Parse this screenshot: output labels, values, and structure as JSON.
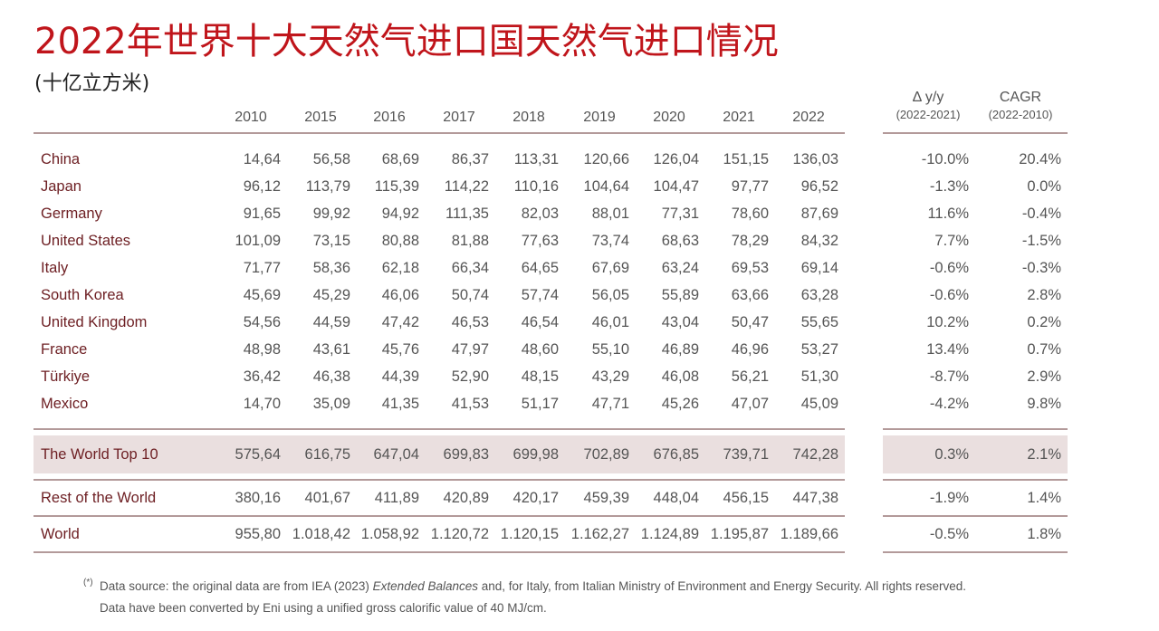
{
  "title": "2022年世界十大天然气进口国天然气进口情况",
  "subtitle": "(十亿立方米)",
  "years": [
    "2010",
    "2015",
    "2016",
    "2017",
    "2018",
    "2019",
    "2020",
    "2021",
    "2022"
  ],
  "delta_header": {
    "label": "Δ y/y",
    "sub": "(2022-2021)"
  },
  "cagr_header": {
    "label": "CAGR",
    "sub": "(2022-2010)"
  },
  "rows": [
    {
      "country": "China",
      "values": [
        "14,64",
        "56,58",
        "68,69",
        "86,37",
        "113,31",
        "120,66",
        "126,04",
        "151,15",
        "136,03"
      ],
      "delta": "-10.0%",
      "cagr": "20.4%"
    },
    {
      "country": "Japan",
      "values": [
        "96,12",
        "113,79",
        "115,39",
        "114,22",
        "110,16",
        "104,64",
        "104,47",
        "97,77",
        "96,52"
      ],
      "delta": "-1.3%",
      "cagr": "0.0%"
    },
    {
      "country": "Germany",
      "values": [
        "91,65",
        "99,92",
        "94,92",
        "111,35",
        "82,03",
        "88,01",
        "77,31",
        "78,60",
        "87,69"
      ],
      "delta": "11.6%",
      "cagr": "-0.4%"
    },
    {
      "country": "United States",
      "values": [
        "101,09",
        "73,15",
        "80,88",
        "81,88",
        "77,63",
        "73,74",
        "68,63",
        "78,29",
        "84,32"
      ],
      "delta": "7.7%",
      "cagr": "-1.5%"
    },
    {
      "country": "Italy",
      "values": [
        "71,77",
        "58,36",
        "62,18",
        "66,34",
        "64,65",
        "67,69",
        "63,24",
        "69,53",
        "69,14"
      ],
      "delta": "-0.6%",
      "cagr": "-0.3%"
    },
    {
      "country": "South Korea",
      "values": [
        "45,69",
        "45,29",
        "46,06",
        "50,74",
        "57,74",
        "56,05",
        "55,89",
        "63,66",
        "63,28"
      ],
      "delta": "-0.6%",
      "cagr": "2.8%"
    },
    {
      "country": "United Kingdom",
      "values": [
        "54,56",
        "44,59",
        "47,42",
        "46,53",
        "46,54",
        "46,01",
        "43,04",
        "50,47",
        "55,65"
      ],
      "delta": "10.2%",
      "cagr": "0.2%"
    },
    {
      "country": "France",
      "values": [
        "48,98",
        "43,61",
        "45,76",
        "47,97",
        "48,60",
        "55,10",
        "46,89",
        "46,96",
        "53,27"
      ],
      "delta": "13.4%",
      "cagr": "0.7%"
    },
    {
      "country": "Türkiye",
      "values": [
        "36,42",
        "46,38",
        "44,39",
        "52,90",
        "48,15",
        "43,29",
        "46,08",
        "56,21",
        "51,30"
      ],
      "delta": "-8.7%",
      "cagr": "2.9%"
    },
    {
      "country": "Mexico",
      "values": [
        "14,70",
        "35,09",
        "41,35",
        "41,53",
        "51,17",
        "47,71",
        "45,26",
        "47,07",
        "45,09"
      ],
      "delta": "-4.2%",
      "cagr": "9.8%"
    }
  ],
  "top10": {
    "country": "The World Top 10",
    "values": [
      "575,64",
      "616,75",
      "647,04",
      "699,83",
      "699,98",
      "702,89",
      "676,85",
      "739,71",
      "742,28"
    ],
    "delta": "0.3%",
    "cagr": "2.1%"
  },
  "rest": {
    "country": "Rest of the World",
    "values": [
      "380,16",
      "401,67",
      "411,89",
      "420,89",
      "420,17",
      "459,39",
      "448,04",
      "456,15",
      "447,38"
    ],
    "delta": "-1.9%",
    "cagr": "1.4%"
  },
  "world": {
    "country": "World",
    "values": [
      "955,80",
      "1.018,42",
      "1.058,92",
      "1.120,72",
      "1.120,15",
      "1.162,27",
      "1.124,89",
      "1.195,87",
      "1.189,66"
    ],
    "delta": "-0.5%",
    "cagr": "1.8%"
  },
  "footnote": {
    "mark": "(*)",
    "line1_pre": "Data source: the original data are from IEA (2023) ",
    "line1_em": "Extended Balances",
    "line1_post": " and, for Italy, from Italian Ministry of Environment and Energy Security. All rights reserved.",
    "line2": "Data have been converted by Eni using a unified gross calorific value of 40 MJ/cm."
  }
}
